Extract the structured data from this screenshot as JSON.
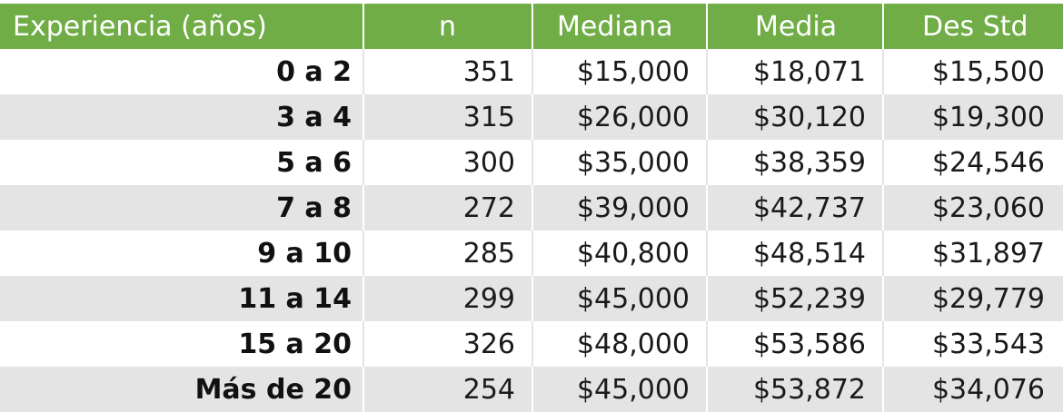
{
  "table": {
    "headers": [
      "Experiencia (años)",
      "n",
      "Mediana",
      "Media",
      "Des Std"
    ],
    "rows": [
      {
        "experiencia": "0 a 2",
        "n": "351",
        "mediana": "$15,000",
        "media": "$18,071",
        "des_std": "$15,500"
      },
      {
        "experiencia": "3 a 4",
        "n": "315",
        "mediana": "$26,000",
        "media": "$30,120",
        "des_std": "$19,300"
      },
      {
        "experiencia": "5 a 6",
        "n": "300",
        "mediana": "$35,000",
        "media": "$38,359",
        "des_std": "$24,546"
      },
      {
        "experiencia": "7 a 8",
        "n": "272",
        "mediana": "$39,000",
        "media": "$42,737",
        "des_std": "$23,060"
      },
      {
        "experiencia": "9 a 10",
        "n": "285",
        "mediana": "$40,800",
        "media": "$48,514",
        "des_std": "$31,897"
      },
      {
        "experiencia": "11 a 14",
        "n": "299",
        "mediana": "$45,000",
        "media": "$52,239",
        "des_std": "$29,779"
      },
      {
        "experiencia": "15 a 20",
        "n": "326",
        "mediana": "$48,000",
        "media": "$53,586",
        "des_std": "$33,543"
      },
      {
        "experiencia": "Más de 20",
        "n": "254",
        "mediana": "$45,000",
        "media": "$53,872",
        "des_std": "$34,076"
      }
    ]
  },
  "colors": {
    "header_bg": "#70ad47",
    "header_text": "#ffffff",
    "band": "#e4e4e4"
  }
}
